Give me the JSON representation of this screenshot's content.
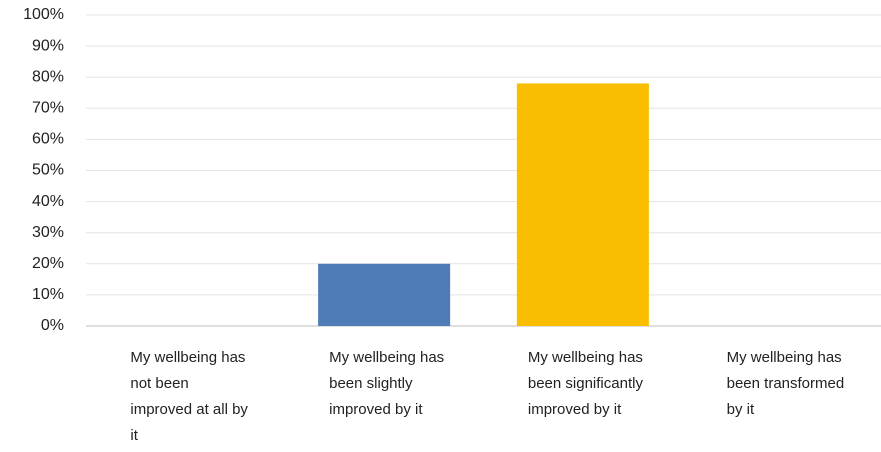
{
  "chart_data": {
    "type": "bar",
    "categories": [
      "My wellbeing has not been improved at all by it",
      "My wellbeing has been slightly improved by it",
      "My wellbeing has been significantly improved by it",
      "My wellbeing has been transformed by it"
    ],
    "values": [
      0,
      20,
      78,
      0
    ],
    "colors": [
      null,
      "#4f7bb6",
      "#f9be00",
      null
    ],
    "ylim": [
      0,
      100
    ],
    "yticks": [
      {
        "value": 0,
        "label": "0%"
      },
      {
        "value": 10,
        "label": "10%"
      },
      {
        "value": 20,
        "label": "20%"
      },
      {
        "value": 30,
        "label": "30%"
      },
      {
        "value": 40,
        "label": "40%"
      },
      {
        "value": 50,
        "label": "50%"
      },
      {
        "value": 60,
        "label": "60%"
      },
      {
        "value": 70,
        "label": "70%"
      },
      {
        "value": 80,
        "label": "80%"
      },
      {
        "value": 90,
        "label": "90%"
      },
      {
        "value": 100,
        "label": "100%"
      }
    ],
    "grid": true
  }
}
